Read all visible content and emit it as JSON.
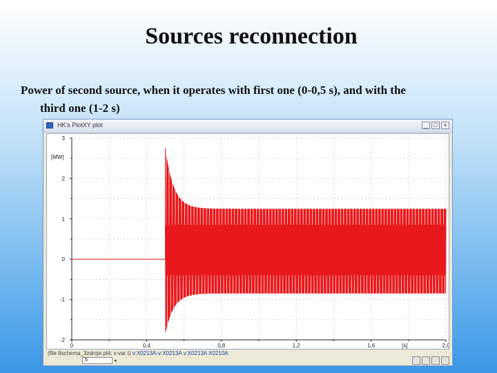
{
  "slide": {
    "title": "Sources reconnection",
    "caption_line1": "Power of second source, when it operates with first one (0-0,5 s), and with the",
    "caption_line2": "third one (1-2 s)"
  },
  "window": {
    "title": "HK's PlotXY plot",
    "min_label": "_",
    "max_label": "□",
    "close_label": "×"
  },
  "status": {
    "file_text": "(file 8schema_3zdroje.pl4; x-var t)",
    "vars_text": "v:X0213A-v:X0213A v:X0213A X0210A",
    "spin_value": "5",
    "spin_arrow": "◂"
  },
  "colors": {
    "trace": "#e8181c",
    "grid": "#c8c8c8"
  },
  "chart_data": {
    "type": "line",
    "xlabel": "[s]",
    "ylabel": "[MW]",
    "xlim": [
      0,
      2.0
    ],
    "ylim": [
      -2,
      3
    ],
    "x_ticks": [
      "0",
      "0,4",
      "0,8",
      "1,2",
      "1,6",
      "2,0"
    ],
    "x_tick_values": [
      0,
      0.4,
      0.8,
      1.2,
      1.6,
      2.0
    ],
    "y_ticks": [
      "3",
      "2",
      "1",
      "0",
      "-1",
      "-2"
    ],
    "y_tick_values": [
      3,
      2,
      1,
      0,
      -1,
      -2
    ],
    "grid": true,
    "series": [
      {
        "segments": [
          {
            "x_start": 0,
            "x_end": 0.5,
            "value": 0.0
          },
          {
            "x_start": 0.5,
            "x_end": 2.0,
            "oscillation": {
              "mean": 0.25,
              "initial_max": 2.75,
              "initial_min": -1.85,
              "steady_max": 1.25,
              "steady_min": -0.85,
              "inner_band_max": 0.85,
              "inner_band_min": -0.4
            }
          }
        ]
      }
    ]
  }
}
